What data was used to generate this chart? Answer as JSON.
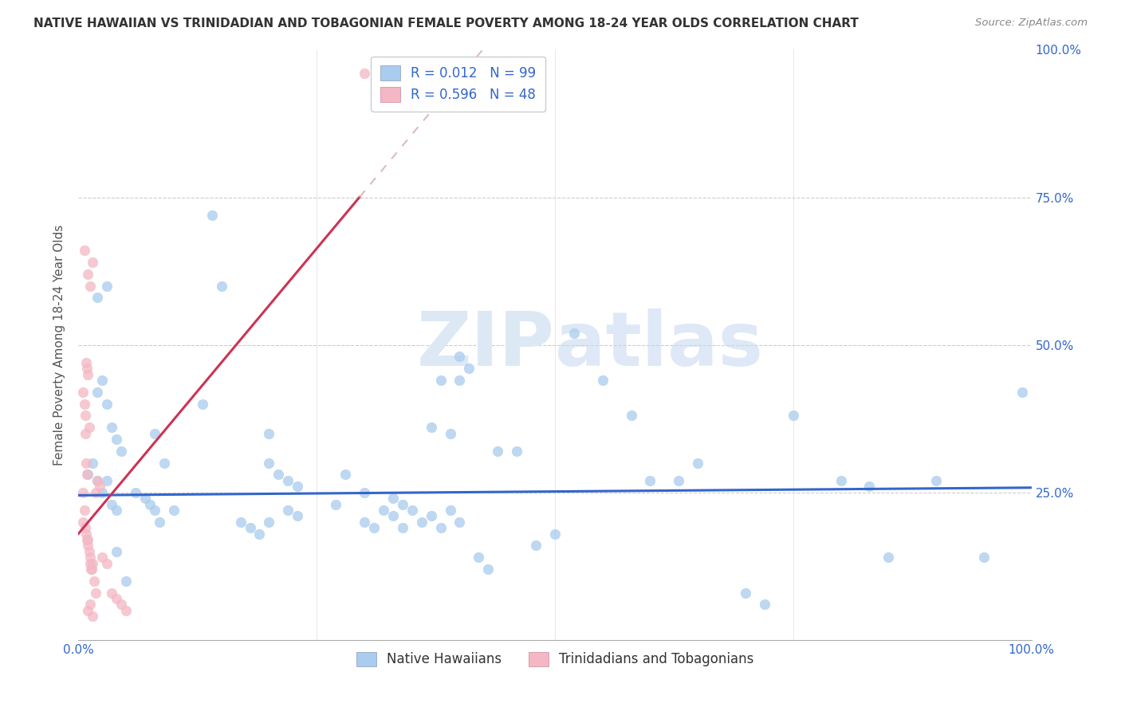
{
  "title": "NATIVE HAWAIIAN VS TRINIDADIAN AND TOBAGONIAN FEMALE POVERTY AMONG 18-24 YEAR OLDS CORRELATION CHART",
  "source": "Source: ZipAtlas.com",
  "ylabel": "Female Poverty Among 18-24 Year Olds",
  "legend_label1": "Native Hawaiians",
  "legend_label2": "Trinidadians and Tobagonians",
  "r1": "0.012",
  "n1": "99",
  "r2": "0.596",
  "n2": "48",
  "color1": "#aaccee",
  "color2": "#f4b8c4",
  "trendline1_color": "#3366cc",
  "trendline2_color": "#cc3355",
  "watermark_color": "#dde8f5",
  "xlim": [
    0,
    1
  ],
  "ylim": [
    0,
    1
  ],
  "xticks": [
    0,
    0.25,
    0.5,
    0.75,
    1.0
  ],
  "yticks": [
    0,
    0.25,
    0.5,
    0.75,
    1.0
  ],
  "xticklabels": [
    "0.0%",
    "",
    "",
    "",
    "100.0%"
  ],
  "yticklabels": [
    "",
    "25.0%",
    "50.0%",
    "75.0%",
    "100.0%"
  ],
  "blue_scatter_x": [
    0.01,
    0.015,
    0.02,
    0.025,
    0.03,
    0.035,
    0.04,
    0.045,
    0.02,
    0.025,
    0.03,
    0.035,
    0.04,
    0.06,
    0.07,
    0.075,
    0.08,
    0.085,
    0.08,
    0.09,
    0.1,
    0.13,
    0.14,
    0.15,
    0.17,
    0.18,
    0.19,
    0.2,
    0.2,
    0.21,
    0.22,
    0.23,
    0.2,
    0.22,
    0.23,
    0.27,
    0.28,
    0.3,
    0.3,
    0.31,
    0.32,
    0.33,
    0.34,
    0.33,
    0.34,
    0.35,
    0.36,
    0.37,
    0.38,
    0.39,
    0.4,
    0.37,
    0.38,
    0.39,
    0.4,
    0.41,
    0.4,
    0.42,
    0.43,
    0.44,
    0.46,
    0.48,
    0.5,
    0.52,
    0.55,
    0.58,
    0.6,
    0.63,
    0.65,
    0.7,
    0.72,
    0.75,
    0.8,
    0.83,
    0.85,
    0.9,
    0.95,
    0.99,
    0.02,
    0.03,
    0.04,
    0.05
  ],
  "blue_scatter_y": [
    0.28,
    0.3,
    0.42,
    0.44,
    0.4,
    0.36,
    0.34,
    0.32,
    0.27,
    0.25,
    0.27,
    0.23,
    0.22,
    0.25,
    0.24,
    0.23,
    0.22,
    0.2,
    0.35,
    0.3,
    0.22,
    0.4,
    0.72,
    0.6,
    0.2,
    0.19,
    0.18,
    0.2,
    0.3,
    0.28,
    0.22,
    0.21,
    0.35,
    0.27,
    0.26,
    0.23,
    0.28,
    0.25,
    0.2,
    0.19,
    0.22,
    0.21,
    0.19,
    0.24,
    0.23,
    0.22,
    0.2,
    0.21,
    0.19,
    0.22,
    0.2,
    0.36,
    0.44,
    0.35,
    0.48,
    0.46,
    0.44,
    0.14,
    0.12,
    0.32,
    0.32,
    0.16,
    0.18,
    0.52,
    0.44,
    0.38,
    0.27,
    0.27,
    0.3,
    0.08,
    0.06,
    0.38,
    0.27,
    0.26,
    0.14,
    0.27,
    0.14,
    0.42,
    0.58,
    0.6,
    0.15,
    0.1
  ],
  "pink_scatter_x": [
    0.005,
    0.007,
    0.008,
    0.009,
    0.01,
    0.011,
    0.012,
    0.013,
    0.015,
    0.005,
    0.006,
    0.007,
    0.008,
    0.009,
    0.01,
    0.012,
    0.014,
    0.016,
    0.018,
    0.005,
    0.006,
    0.007,
    0.008,
    0.009,
    0.01,
    0.011,
    0.01,
    0.012,
    0.015,
    0.018,
    0.02,
    0.022,
    0.01,
    0.012,
    0.015,
    0.025,
    0.03,
    0.035,
    0.04,
    0.045,
    0.05,
    0.006,
    0.3
  ],
  "pink_scatter_y": [
    0.2,
    0.19,
    0.18,
    0.17,
    0.16,
    0.15,
    0.13,
    0.12,
    0.13,
    0.25,
    0.22,
    0.35,
    0.3,
    0.28,
    0.17,
    0.14,
    0.12,
    0.1,
    0.08,
    0.42,
    0.4,
    0.38,
    0.47,
    0.46,
    0.45,
    0.36,
    0.62,
    0.6,
    0.64,
    0.25,
    0.27,
    0.26,
    0.05,
    0.06,
    0.04,
    0.14,
    0.13,
    0.08,
    0.07,
    0.06,
    0.05,
    0.66,
    0.96
  ]
}
